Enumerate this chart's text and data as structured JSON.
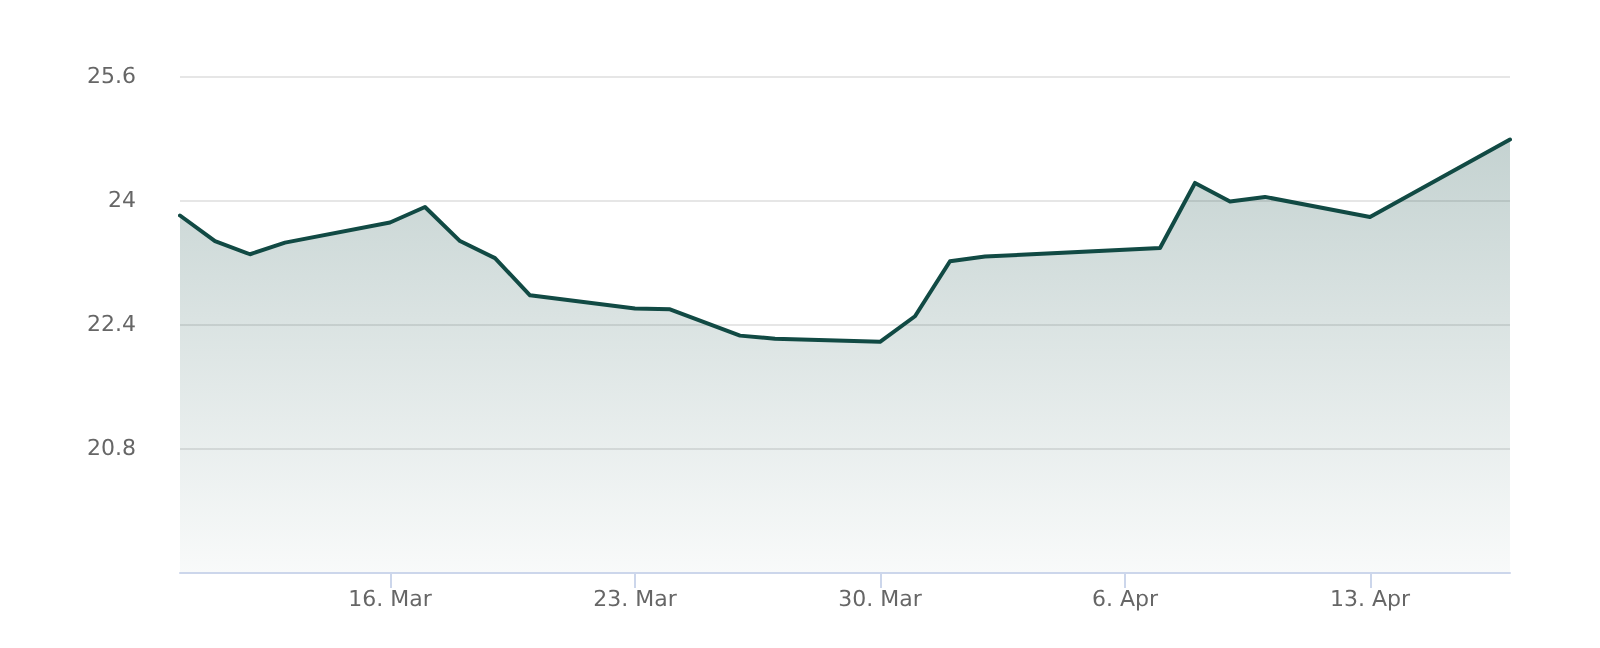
{
  "chart_data": {
    "type": "area",
    "x": [
      "--03-10",
      "--03-11",
      "--03-12",
      "--03-13",
      "--03-16",
      "--03-17",
      "--03-18",
      "--03-19",
      "--03-20",
      "--03-23",
      "--03-24",
      "--03-26",
      "--03-27",
      "--03-30",
      "--03-31",
      "--04-01",
      "--04-02",
      "--04-07",
      "--04-08",
      "--04-09",
      "--04-10",
      "--04-13",
      "--04-17"
    ],
    "series": [
      {
        "color": "#114a44",
        "values": [
          23.8,
          23.47,
          23.3,
          23.45,
          23.71,
          23.91,
          23.47,
          23.25,
          22.77,
          22.6,
          22.59,
          22.25,
          22.21,
          22.17,
          22.5,
          23.21,
          23.27,
          23.38,
          24.22,
          23.98,
          24.04,
          23.78,
          24.78
        ]
      }
    ],
    "xlim": [
      "--03-10",
      "--04-17"
    ],
    "xticks": [
      {
        "value": "--03-16",
        "label": "16. Mar"
      },
      {
        "value": "--03-23",
        "label": "23. Mar"
      },
      {
        "value": "--03-30",
        "label": "30. Mar"
      },
      {
        "value": "--04-06",
        "label": "6. Apr"
      },
      {
        "value": "--04-13",
        "label": "13. Apr"
      }
    ],
    "ylim": [
      19.2,
      25.6
    ],
    "yticks": [
      20.8,
      22.4,
      24,
      25.6
    ],
    "grid": "y",
    "marker": "none",
    "line_style": "solid"
  }
}
